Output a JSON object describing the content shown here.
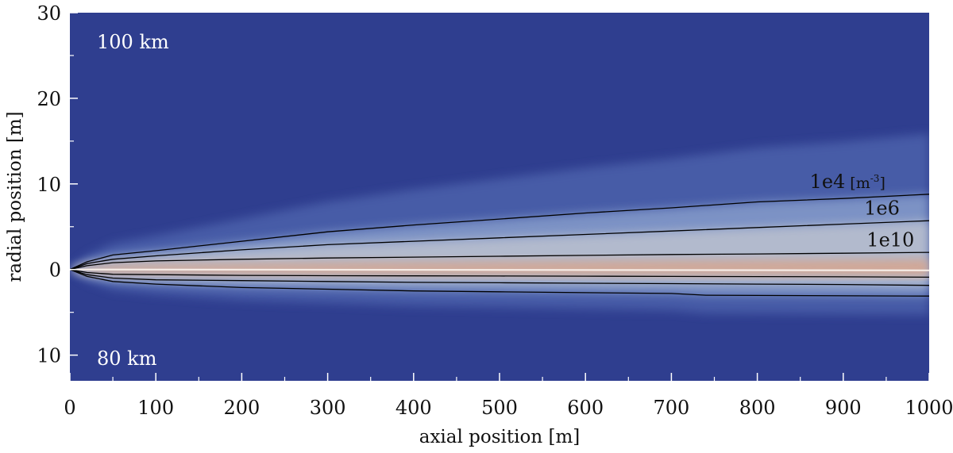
{
  "chart_data": {
    "type": "heatmap",
    "xlabel": "axial position [m]",
    "ylabel": "radial position [m]",
    "xlim": [
      0,
      1000
    ],
    "ylim": [
      -13,
      30
    ],
    "x_ticks": [
      {
        "value": 0,
        "label": "0"
      },
      {
        "value": 100,
        "label": "100"
      },
      {
        "value": 200,
        "label": "200"
      },
      {
        "value": 300,
        "label": "300"
      },
      {
        "value": 400,
        "label": "400"
      },
      {
        "value": 500,
        "label": "500"
      },
      {
        "value": 600,
        "label": "600"
      },
      {
        "value": 700,
        "label": "700"
      },
      {
        "value": 800,
        "label": "800"
      },
      {
        "value": 900,
        "label": "900"
      },
      {
        "value": 1000,
        "label": "1000"
      }
    ],
    "y_ticks": [
      {
        "value": 30,
        "label": "30"
      },
      {
        "value": 20,
        "label": "20"
      },
      {
        "value": 10,
        "label": "10"
      },
      {
        "value": 0,
        "label": "0"
      },
      {
        "value": -10,
        "label": "10"
      }
    ],
    "region_labels": {
      "top": "100 km",
      "bottom": "80 km"
    },
    "colors": {
      "background": "#2f3e8f",
      "mid": "#7f9acd",
      "light": "#b9c2d3",
      "warm": "#d6a58f",
      "core": "#ffffff",
      "contour": "#000000"
    },
    "contours": [
      {
        "label_main": "1e4",
        "label_unit": "[m",
        "label_sup": "-3",
        "label_close": "]",
        "label_at": [
          905,
          9.5
        ],
        "upper": [
          [
            0,
            0
          ],
          [
            20,
            0.9
          ],
          [
            50,
            1.7
          ],
          [
            100,
            2.2
          ],
          [
            200,
            3.3
          ],
          [
            300,
            4.4
          ],
          [
            400,
            5.2
          ],
          [
            500,
            5.9
          ],
          [
            600,
            6.6
          ],
          [
            700,
            7.2
          ],
          [
            800,
            7.9
          ],
          [
            900,
            8.3
          ],
          [
            1000,
            8.8
          ]
        ],
        "lower": [
          [
            0,
            0
          ],
          [
            20,
            -0.8
          ],
          [
            50,
            -1.4
          ],
          [
            100,
            -1.7
          ],
          [
            200,
            -2.1
          ],
          [
            300,
            -2.3
          ],
          [
            400,
            -2.5
          ],
          [
            500,
            -2.6
          ],
          [
            600,
            -2.7
          ],
          [
            700,
            -2.8
          ],
          [
            740,
            -3.0
          ],
          [
            1000,
            -3.1
          ]
        ]
      },
      {
        "label_main": "1e6",
        "label_at": [
          945,
          6.4
        ],
        "upper": [
          [
            0,
            0
          ],
          [
            20,
            0.7
          ],
          [
            50,
            1.2
          ],
          [
            100,
            1.6
          ],
          [
            200,
            2.3
          ],
          [
            300,
            2.9
          ],
          [
            400,
            3.3
          ],
          [
            500,
            3.7
          ],
          [
            600,
            4.1
          ],
          [
            700,
            4.5
          ],
          [
            800,
            4.9
          ],
          [
            900,
            5.3
          ],
          [
            1000,
            5.7
          ]
        ],
        "lower": [
          [
            0,
            0
          ],
          [
            20,
            -0.6
          ],
          [
            50,
            -1.0
          ],
          [
            100,
            -1.2
          ],
          [
            200,
            -1.3
          ],
          [
            300,
            -1.4
          ],
          [
            400,
            -1.5
          ],
          [
            500,
            -1.55
          ],
          [
            600,
            -1.6
          ],
          [
            700,
            -1.65
          ],
          [
            800,
            -1.7
          ],
          [
            900,
            -1.75
          ],
          [
            1000,
            -1.85
          ]
        ]
      },
      {
        "label_main": "1e10",
        "label_at": [
          955,
          2.7
        ],
        "upper": [
          [
            0,
            0
          ],
          [
            20,
            0.45
          ],
          [
            50,
            0.8
          ],
          [
            100,
            1.0
          ],
          [
            200,
            1.2
          ],
          [
            300,
            1.35
          ],
          [
            400,
            1.45
          ],
          [
            500,
            1.55
          ],
          [
            600,
            1.65
          ],
          [
            700,
            1.75
          ],
          [
            800,
            1.82
          ],
          [
            900,
            1.9
          ],
          [
            1000,
            2.0
          ]
        ],
        "lower": [
          [
            0,
            0
          ],
          [
            20,
            -0.35
          ],
          [
            50,
            -0.55
          ],
          [
            100,
            -0.6
          ],
          [
            200,
            -0.68
          ],
          [
            300,
            -0.72
          ],
          [
            400,
            -0.74
          ],
          [
            500,
            -0.76
          ],
          [
            600,
            -0.78
          ],
          [
            700,
            -0.8
          ],
          [
            800,
            -0.82
          ],
          [
            900,
            -0.85
          ],
          [
            1000,
            -0.9
          ]
        ]
      }
    ]
  }
}
